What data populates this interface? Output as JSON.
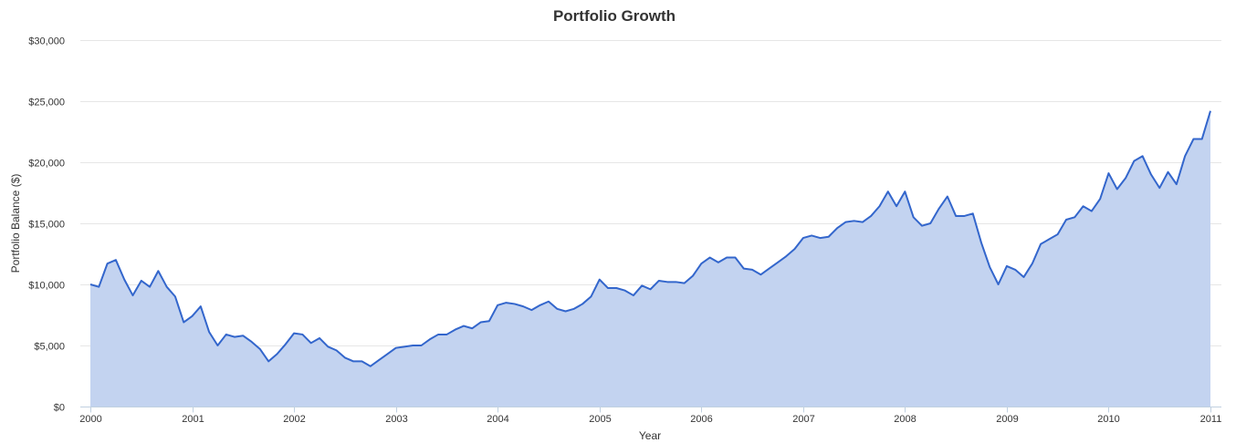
{
  "chart_data": {
    "type": "area",
    "title": "Portfolio Growth",
    "xlabel": "Year",
    "ylabel": "Portfolio Balance ($)",
    "xlim": [
      2000,
      2011
    ],
    "ylim": [
      0,
      30000
    ],
    "y_ticks": [
      {
        "value": 0,
        "label": "$0"
      },
      {
        "value": 5000,
        "label": "$5,000"
      },
      {
        "value": 10000,
        "label": "$10,000"
      },
      {
        "value": 15000,
        "label": "$15,000"
      },
      {
        "value": 20000,
        "label": "$20,000"
      },
      {
        "value": 25000,
        "label": "$25,000"
      },
      {
        "value": 30000,
        "label": "$30,000"
      }
    ],
    "x_ticks": [
      "2000",
      "2001",
      "2002",
      "2003",
      "2004",
      "2005",
      "2006",
      "2007",
      "2008",
      "2009",
      "2010",
      "2011"
    ],
    "grid": true,
    "legend": "none",
    "colors": {
      "line": "#3366cc",
      "fill": "#c3d3f0",
      "grid": "#e6e6e6"
    },
    "series": [
      {
        "x_start": "2000-01",
        "x_step": "1 month",
        "values": [
          10000,
          9800,
          11700,
          12000,
          10400,
          9100,
          10300,
          9800,
          11100,
          9800,
          9000,
          6900,
          7400,
          8200,
          6100,
          5000,
          5900,
          5700,
          5800,
          5300,
          4700,
          3700,
          4300,
          5100,
          6000,
          5900,
          5200,
          5600,
          4900,
          4600,
          4000,
          3700,
          3700,
          3300,
          3800,
          4300,
          4800,
          4900,
          5000,
          5000,
          5500,
          5900,
          5900,
          6300,
          6600,
          6400,
          6900,
          7000,
          8300,
          8500,
          8400,
          8200,
          7900,
          8300,
          8600,
          8000,
          7800,
          8000,
          8400,
          9000,
          10400,
          9700,
          9700,
          9500,
          9100,
          9900,
          9600,
          10300,
          10200,
          10200,
          10100,
          10700,
          11700,
          12200,
          11800,
          12200,
          12200,
          11300,
          11200,
          10800,
          11300,
          11800,
          12300,
          12900,
          13800,
          14000,
          13800,
          13900,
          14600,
          15100,
          15200,
          15100,
          15600,
          16400,
          17600,
          16400,
          17600,
          15500,
          14800,
          15000,
          16200,
          17200,
          15600,
          15600,
          15800,
          13400,
          11400,
          10000,
          11500,
          11200,
          10600,
          11700,
          13300,
          13700,
          14100,
          15300,
          15500,
          16400,
          16000,
          17000,
          19100,
          17800,
          18700,
          20100,
          20500,
          19000,
          17900,
          19200,
          18200,
          20500,
          21900,
          21900,
          24200
        ]
      }
    ]
  }
}
